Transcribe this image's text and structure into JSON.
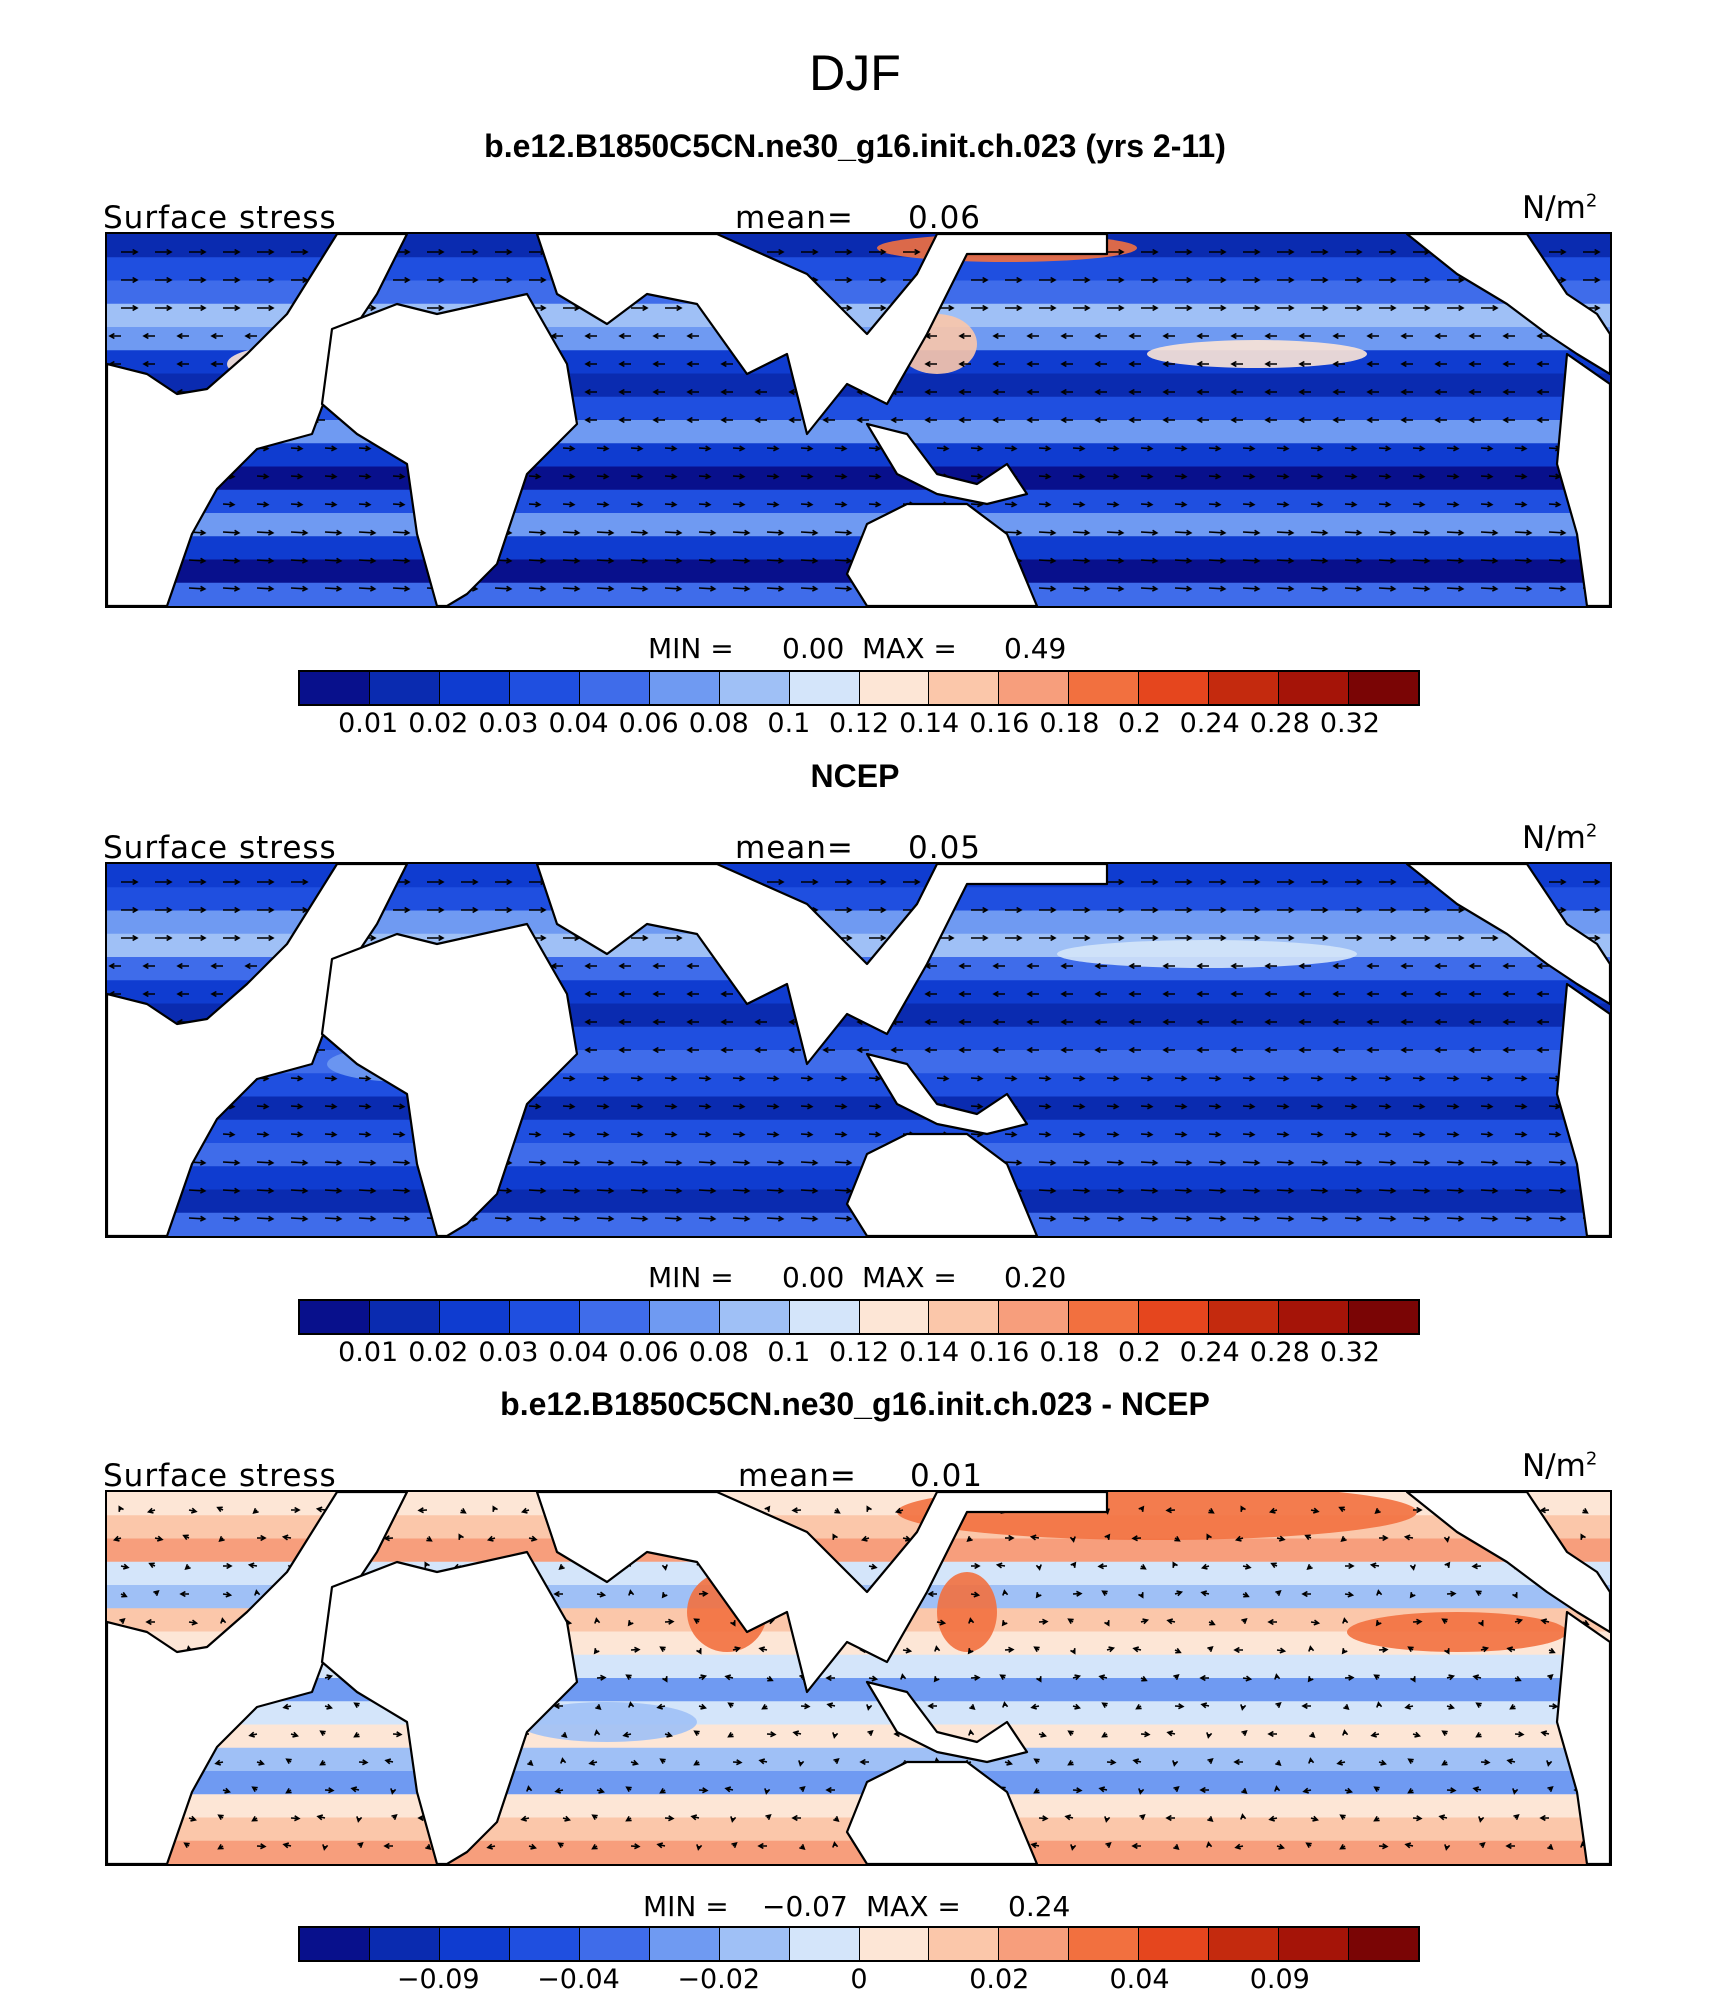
{
  "season": "DJF",
  "colors": {
    "blue_dark": "#08108c",
    "blue_mid": "#1f4fe0",
    "blue_light": "#6f9af2",
    "blue_pale": "#c9dcf8",
    "red_pale": "#fbd6c0",
    "red_mid": "#f2703f",
    "red_dark": "#c42a0e",
    "land": "#ffffff"
  },
  "colorbar_fills": [
    "#08108c",
    "#0a2bb0",
    "#0f3cd0",
    "#1f4fe0",
    "#3f6cea",
    "#6f9af2",
    "#9fc0f6",
    "#d4e5fa",
    "#fde6d6",
    "#fbc7aa",
    "#f79e7c",
    "#f2703f",
    "#e5461e",
    "#c42a0e",
    "#a51408",
    "#7a0505"
  ],
  "panels": [
    {
      "title": "b.e12.B1850C5CN.ne30_g16.init.ch.023 (yrs 2-11)",
      "label_left": "Surface stress",
      "mean_label": "mean=",
      "mean_value": "0.06",
      "units": "N/m",
      "units_sup": "2",
      "min_label": "MIN =",
      "min_value": "0.00",
      "max_label": "MAX =",
      "max_value": "0.49",
      "ticks": [
        "0.01",
        "0.02",
        "0.03",
        "0.04",
        "0.06",
        "0.08",
        "0.1",
        "0.12",
        "0.14",
        "0.16",
        "0.18",
        "0.2",
        "0.24",
        "0.28",
        "0.32"
      ],
      "variant": "model"
    },
    {
      "title": "NCEP",
      "label_left": "Surface stress",
      "mean_label": "mean=",
      "mean_value": "0.05",
      "units": "N/m",
      "units_sup": "2",
      "min_label": "MIN =",
      "min_value": "0.00",
      "max_label": "MAX =",
      "max_value": "0.20",
      "ticks": [
        "0.01",
        "0.02",
        "0.03",
        "0.04",
        "0.06",
        "0.08",
        "0.1",
        "0.12",
        "0.14",
        "0.16",
        "0.18",
        "0.2",
        "0.24",
        "0.28",
        "0.32"
      ],
      "variant": "obs"
    },
    {
      "title": "b.e12.B1850C5CN.ne30_g16.init.ch.023 - NCEP",
      "label_left": "Surface stress",
      "mean_label": "mean=",
      "mean_value": "0.01",
      "units": "N/m",
      "units_sup": "2",
      "min_label": "MIN =",
      "min_value": "−0.07",
      "max_label": "MAX =",
      "max_value": "0.24",
      "ticks": [
        "−0.09",
        "−0.04",
        "−0.02",
        "0",
        "0.02",
        "0.04",
        "0.09"
      ],
      "variant": "diff"
    }
  ]
}
